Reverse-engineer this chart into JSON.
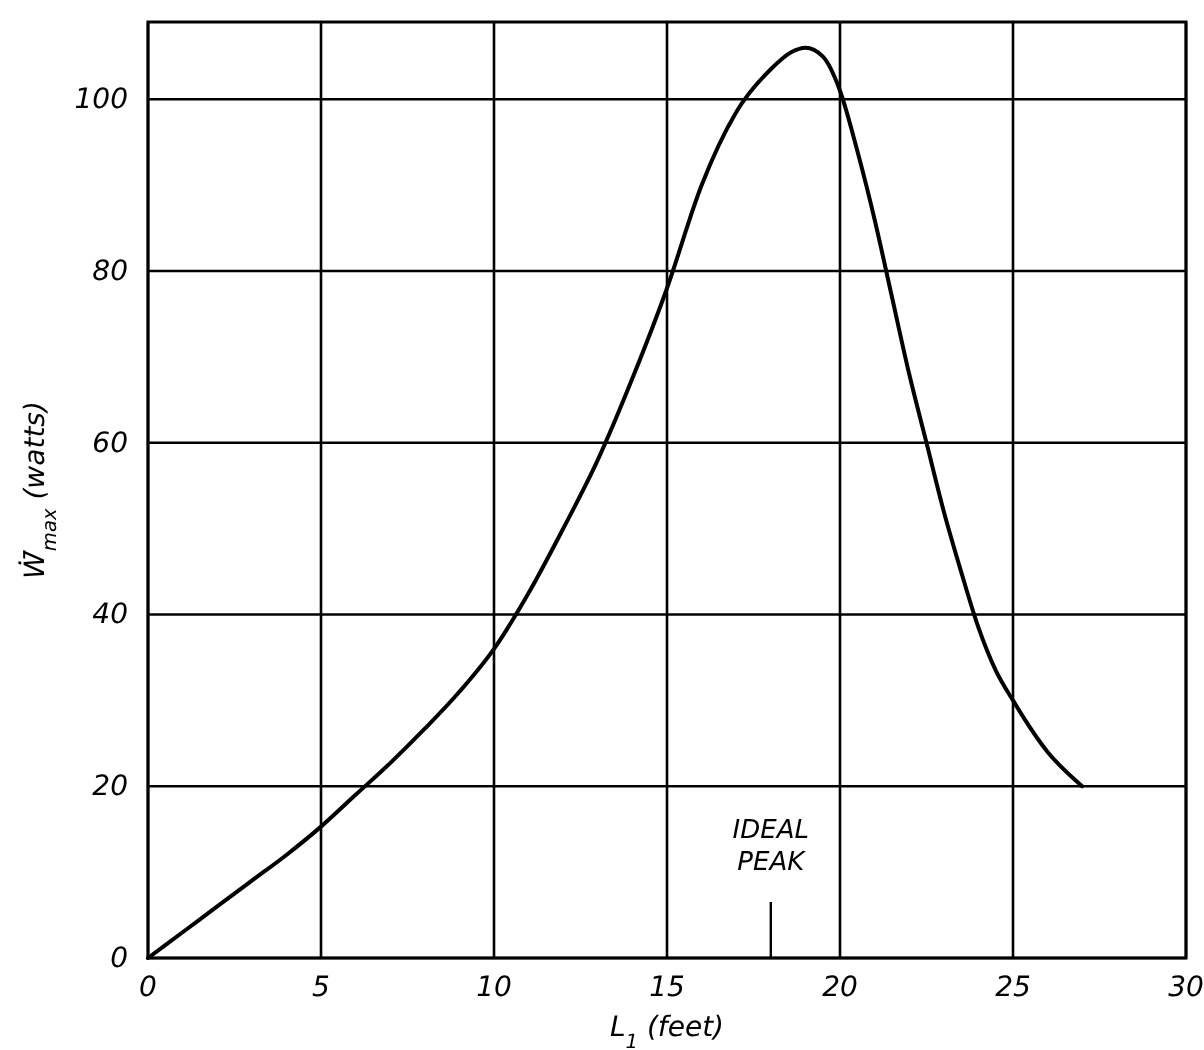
{
  "chart_data": {
    "type": "line",
    "xlabel": "L$_{1}$ (feet)",
    "ylabel": "Ẇ̄$_{max}$ (watts)",
    "x": [
      0,
      1,
      2,
      3,
      4,
      5,
      6,
      7,
      8,
      9,
      10,
      11,
      12,
      13,
      14,
      15,
      16,
      17,
      18,
      18.6,
      19,
      19.5,
      20,
      20.5,
      21,
      21.5,
      22,
      22.5,
      23,
      23.5,
      24,
      24.5,
      25,
      26,
      27
    ],
    "series": [
      {
        "color": "#000000",
        "values": [
          0,
          3,
          6,
          9,
          12,
          15.3,
          19,
          22.7,
          26.7,
          31,
          36,
          42.5,
          50,
          58,
          67.5,
          78,
          90,
          98.5,
          103.5,
          105.5,
          106,
          105,
          101,
          94,
          86,
          77,
          68,
          60,
          52,
          45,
          38.5,
          33.5,
          30,
          24,
          20
        ]
      }
    ],
    "xlim": [
      0,
      30
    ],
    "xticks": [
      0,
      5,
      10,
      15,
      20,
      25,
      30
    ],
    "ylim": [
      0,
      109
    ],
    "yticks": [
      0,
      20,
      40,
      60,
      80,
      100
    ],
    "grid": true,
    "annotations": [
      "IDEAL PEAK"
    ]
  }
}
